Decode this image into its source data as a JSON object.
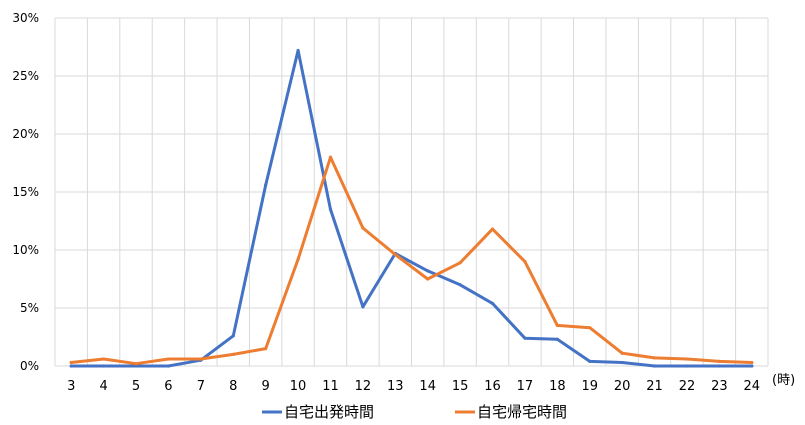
{
  "chart_data": {
    "type": "line",
    "x_unit_label": "(時)",
    "categories": [
      "3",
      "4",
      "5",
      "6",
      "7",
      "8",
      "9",
      "10",
      "11",
      "12",
      "13",
      "14",
      "15",
      "16",
      "17",
      "18",
      "19",
      "20",
      "21",
      "22",
      "23",
      "24"
    ],
    "ylim": [
      0,
      30
    ],
    "yticks": [
      0,
      5,
      10,
      15,
      20,
      25,
      30
    ],
    "ytick_labels": [
      "0%",
      "5%",
      "10%",
      "15%",
      "20%",
      "25%",
      "30%"
    ],
    "grid": true,
    "legend_position": "bottom",
    "series": [
      {
        "name": "自宅出発時間",
        "color": "#4472C4",
        "values": [
          0.0,
          0.0,
          0.0,
          0.0,
          0.5,
          2.6,
          15.6,
          27.2,
          13.5,
          5.1,
          9.7,
          8.2,
          7.0,
          5.4,
          2.4,
          2.3,
          0.4,
          0.3,
          0.0,
          0.0,
          0.0,
          0.0
        ]
      },
      {
        "name": "自宅帰宅時間",
        "color": "#ED7D31",
        "values": [
          0.3,
          0.6,
          0.2,
          0.6,
          0.6,
          1.0,
          1.5,
          9.2,
          18.0,
          11.9,
          9.6,
          7.5,
          8.9,
          11.8,
          9.0,
          3.5,
          3.3,
          1.1,
          0.7,
          0.6,
          0.4,
          0.3
        ]
      }
    ]
  }
}
